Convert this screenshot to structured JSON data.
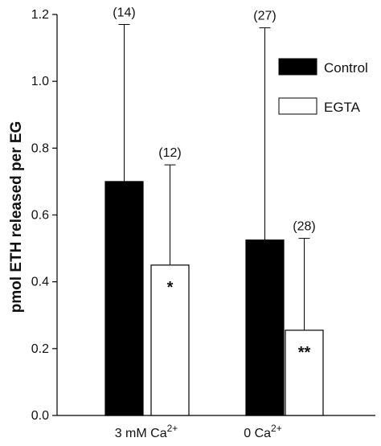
{
  "chart_data": {
    "type": "bar",
    "ylabel": "pmol ETH released per EG",
    "ylim": [
      0,
      1.2
    ],
    "yticks": [
      "0.0",
      "0.2",
      "0.4",
      "0.6",
      "0.8",
      "1.0",
      "1.2"
    ],
    "grid": false,
    "legend_position": "top-right",
    "categories": [
      {
        "label": "3 mM Ca",
        "sup": "2+"
      },
      {
        "label": "0 Ca",
        "sup": "2+"
      }
    ],
    "series": [
      {
        "name": "Control",
        "color": "#000000",
        "values": [
          0.7,
          0.525
        ],
        "error_upper": [
          1.17,
          1.16
        ],
        "n_labels": [
          "(14)",
          "(27)"
        ],
        "significance": [
          "",
          ""
        ]
      },
      {
        "name": "EGTA",
        "color": "#ffffff",
        "values": [
          0.45,
          0.255
        ],
        "error_upper": [
          0.75,
          0.53
        ],
        "n_labels": [
          "(12)",
          "(28)"
        ],
        "significance": [
          "*",
          "**"
        ]
      }
    ]
  }
}
